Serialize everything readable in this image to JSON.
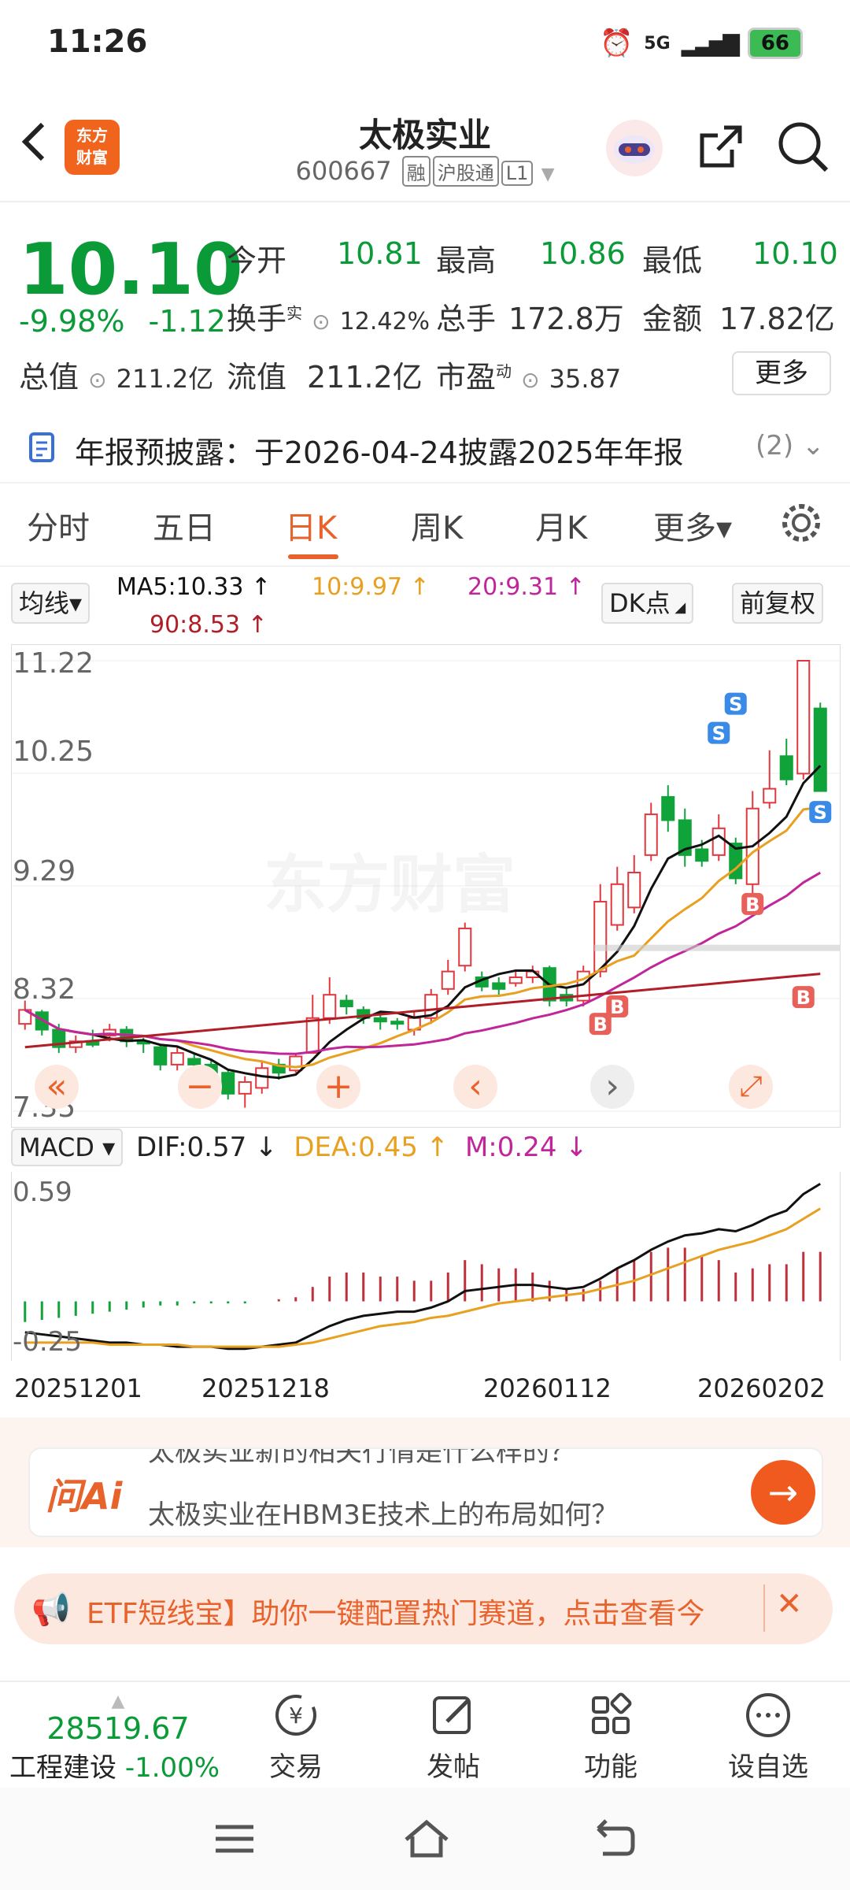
{
  "status_bar": {
    "time": "11:26",
    "network": "5G",
    "battery": "66"
  },
  "header": {
    "back_icon": "chevron-left-icon",
    "app_logo_line1": "东方",
    "app_logo_line2": "财富",
    "stock_name": "太极实业",
    "stock_code": "600667",
    "tags": [
      "融",
      "沪股通",
      "L1"
    ],
    "share_icon": "share-icon",
    "search_icon": "search-icon"
  },
  "quote": {
    "price": "10.10",
    "change_pct": "-9.98%",
    "change": "-1.12",
    "open_label": "今开",
    "open": "10.81",
    "high_label": "最高",
    "high": "10.86",
    "low_label": "最低",
    "low": "10.10",
    "turnover_label": "换手",
    "turnover_sup": "实",
    "turnover": "12.42%",
    "volume_label": "总手",
    "volume": "172.8万",
    "amount_label": "金额",
    "amount": "17.82亿",
    "mktcap_label": "总值",
    "mktcap": "211.2亿",
    "float_label": "流值",
    "float": "211.2亿",
    "pe_label": "市盈",
    "pe_sup": "动",
    "pe": "35.87",
    "more_label": "更多"
  },
  "notice": {
    "text": "年报预披露：于2026-04-24披露2025年年报",
    "count": "(2)"
  },
  "tabs": [
    "分时",
    "五日",
    "日K",
    "周K",
    "月K",
    "更多▾"
  ],
  "active_tab": "日K",
  "ma": {
    "selector": "均线▾",
    "ma5": "MA5:10.33 ↑",
    "ma10": "10:9.97 ↑",
    "ma20": "20:9.31 ↑",
    "ma90": "90:8.53 ↑",
    "dk_label": "DK点",
    "adjust_label": "前复权"
  },
  "kline": {
    "y_ticks": [
      "11.22",
      "10.25",
      "9.29",
      "8.32",
      "7.35"
    ],
    "watermark": "东方财富",
    "colors": {
      "up": "#e0383e",
      "down": "#10a33a",
      "ma5": "#111111",
      "ma10": "#e8a020",
      "ma20": "#c0259a",
      "ma90": "#b01e28"
    }
  },
  "chart_data": {
    "type": "candlestick",
    "ylim": [
      7.35,
      11.22
    ],
    "candles": [
      {
        "o": 8.1,
        "c": 8.22,
        "h": 8.3,
        "l": 8.05
      },
      {
        "o": 8.2,
        "c": 8.05,
        "h": 8.22,
        "l": 8.0
      },
      {
        "o": 8.05,
        "c": 7.9,
        "h": 8.1,
        "l": 7.85
      },
      {
        "o": 7.9,
        "c": 7.95,
        "h": 8.0,
        "l": 7.85
      },
      {
        "o": 7.95,
        "c": 7.92,
        "h": 8.05,
        "l": 7.9
      },
      {
        "o": 8.0,
        "c": 8.05,
        "h": 8.1,
        "l": 7.95
      },
      {
        "o": 8.05,
        "c": 7.95,
        "h": 8.08,
        "l": 7.9
      },
      {
        "o": 7.95,
        "c": 7.93,
        "h": 7.98,
        "l": 7.85
      },
      {
        "o": 7.9,
        "c": 7.75,
        "h": 7.92,
        "l": 7.7
      },
      {
        "o": 7.75,
        "c": 7.85,
        "h": 7.9,
        "l": 7.7
      },
      {
        "o": 7.8,
        "c": 7.75,
        "h": 7.85,
        "l": 7.65
      },
      {
        "o": 7.75,
        "c": 7.68,
        "h": 7.8,
        "l": 7.6
      },
      {
        "o": 7.68,
        "c": 7.5,
        "h": 7.7,
        "l": 7.45
      },
      {
        "o": 7.5,
        "c": 7.6,
        "h": 7.65,
        "l": 7.38
      },
      {
        "o": 7.55,
        "c": 7.72,
        "h": 7.78,
        "l": 7.5
      },
      {
        "o": 7.75,
        "c": 7.68,
        "h": 7.8,
        "l": 7.62
      },
      {
        "o": 7.7,
        "c": 7.82,
        "h": 7.85,
        "l": 7.68
      },
      {
        "o": 7.85,
        "c": 8.15,
        "h": 8.35,
        "l": 7.85
      },
      {
        "o": 8.15,
        "c": 8.35,
        "h": 8.5,
        "l": 8.1
      },
      {
        "o": 8.3,
        "c": 8.25,
        "h": 8.35,
        "l": 8.18
      },
      {
        "o": 8.22,
        "c": 8.15,
        "h": 8.25,
        "l": 8.1
      },
      {
        "o": 8.15,
        "c": 8.12,
        "h": 8.2,
        "l": 8.05
      },
      {
        "o": 8.12,
        "c": 8.1,
        "h": 8.15,
        "l": 8.05
      },
      {
        "o": 8.05,
        "c": 8.15,
        "h": 8.2,
        "l": 8.0
      },
      {
        "o": 8.15,
        "c": 8.35,
        "h": 8.4,
        "l": 8.1
      },
      {
        "o": 8.4,
        "c": 8.55,
        "h": 8.65,
        "l": 8.35
      },
      {
        "o": 8.6,
        "c": 8.92,
        "h": 8.97,
        "l": 8.55
      },
      {
        "o": 8.5,
        "c": 8.42,
        "h": 8.55,
        "l": 8.38
      },
      {
        "o": 8.45,
        "c": 8.4,
        "h": 8.5,
        "l": 8.35
      },
      {
        "o": 8.45,
        "c": 8.5,
        "h": 8.55,
        "l": 8.42
      },
      {
        "o": 8.5,
        "c": 8.55,
        "h": 8.6,
        "l": 8.45
      },
      {
        "o": 8.58,
        "c": 8.3,
        "h": 8.6,
        "l": 8.25
      },
      {
        "o": 8.35,
        "c": 8.3,
        "h": 8.4,
        "l": 8.25
      },
      {
        "o": 8.3,
        "c": 8.55,
        "h": 8.6,
        "l": 8.25
      },
      {
        "o": 8.55,
        "c": 9.15,
        "h": 9.3,
        "l": 8.5
      },
      {
        "o": 8.95,
        "c": 9.3,
        "h": 9.45,
        "l": 8.9
      },
      {
        "o": 9.1,
        "c": 9.4,
        "h": 9.55,
        "l": 9.05
      },
      {
        "o": 9.55,
        "c": 9.9,
        "h": 10.0,
        "l": 9.5
      },
      {
        "o": 10.05,
        "c": 9.85,
        "h": 10.15,
        "l": 9.75
      },
      {
        "o": 9.85,
        "c": 9.55,
        "h": 9.95,
        "l": 9.45
      },
      {
        "o": 9.6,
        "c": 9.5,
        "h": 9.68,
        "l": 9.45
      },
      {
        "o": 9.55,
        "c": 9.78,
        "h": 9.9,
        "l": 9.5
      },
      {
        "o": 9.65,
        "c": 9.35,
        "h": 9.7,
        "l": 9.3
      },
      {
        "o": 9.3,
        "c": 9.95,
        "h": 10.1,
        "l": 9.2
      },
      {
        "o": 10.0,
        "c": 10.12,
        "h": 10.45,
        "l": 9.95
      },
      {
        "o": 10.4,
        "c": 10.2,
        "h": 10.55,
        "l": 10.15
      },
      {
        "o": 10.25,
        "c": 11.22,
        "h": 11.22,
        "l": 10.2
      },
      {
        "o": 10.81,
        "c": 10.1,
        "h": 10.86,
        "l": 10.1
      }
    ],
    "markers": [
      "S",
      "S",
      "S",
      "B",
      "B",
      "B",
      "B"
    ]
  },
  "macd": {
    "selector": "MACD ▾",
    "dif": "DIF:0.57 ↓",
    "dea": "DEA:0.45 ↑",
    "m": "M:0.24 ↓",
    "y_top": "0.59",
    "y_bottom": "-0.25"
  },
  "macd_data": {
    "dif": [
      -0.15,
      -0.16,
      -0.17,
      -0.18,
      -0.19,
      -0.2,
      -0.2,
      -0.21,
      -0.21,
      -0.22,
      -0.22,
      -0.22,
      -0.23,
      -0.23,
      -0.22,
      -0.21,
      -0.2,
      -0.16,
      -0.12,
      -0.09,
      -0.07,
      -0.06,
      -0.05,
      -0.05,
      -0.03,
      0.0,
      0.05,
      0.06,
      0.07,
      0.08,
      0.08,
      0.07,
      0.06,
      0.07,
      0.11,
      0.16,
      0.2,
      0.25,
      0.29,
      0.32,
      0.33,
      0.35,
      0.34,
      0.37,
      0.41,
      0.44,
      0.52,
      0.57
    ],
    "dea": [
      -0.2,
      -0.2,
      -0.2,
      -0.2,
      -0.2,
      -0.21,
      -0.21,
      -0.21,
      -0.21,
      -0.21,
      -0.22,
      -0.22,
      -0.22,
      -0.22,
      -0.22,
      -0.22,
      -0.21,
      -0.2,
      -0.18,
      -0.16,
      -0.14,
      -0.12,
      -0.11,
      -0.1,
      -0.08,
      -0.07,
      -0.05,
      -0.03,
      -0.01,
      0.0,
      0.01,
      0.02,
      0.03,
      0.04,
      0.06,
      0.08,
      0.1,
      0.13,
      0.16,
      0.19,
      0.22,
      0.25,
      0.27,
      0.29,
      0.32,
      0.35,
      0.4,
      0.45
    ],
    "hist": [
      -0.1,
      -0.09,
      -0.08,
      -0.07,
      -0.06,
      -0.05,
      -0.04,
      -0.03,
      -0.02,
      -0.02,
      -0.01,
      -0.01,
      -0.01,
      -0.01,
      0.0,
      0.01,
      0.02,
      0.07,
      0.12,
      0.14,
      0.14,
      0.12,
      0.12,
      0.1,
      0.1,
      0.14,
      0.2,
      0.18,
      0.16,
      0.16,
      0.14,
      0.1,
      0.06,
      0.06,
      0.1,
      0.16,
      0.2,
      0.24,
      0.26,
      0.26,
      0.22,
      0.2,
      0.14,
      0.16,
      0.18,
      0.18,
      0.24,
      0.24
    ]
  },
  "dates": [
    "20251201",
    "20251218",
    "20260112",
    "20260202"
  ],
  "chart_controls": {
    "prev": "«",
    "zoom_out": "−",
    "zoom_in": "+",
    "left": "‹",
    "right": "›",
    "expand": "⤢"
  },
  "ai": {
    "logo": "问Ai",
    "line1": "太极实业新的相关行情是什么样的？",
    "line2": "太极实业在HBM3E技术上的布局如何？"
  },
  "promo": {
    "text": "ETF短线宝】助你一键配置热门赛道，点击查看今",
    "close": "✕"
  },
  "bottom_nav": {
    "index_value": "28519.67",
    "index_name": "工程建设",
    "index_change": "-1.00%",
    "items": [
      {
        "label": "交易",
        "icon": "yen-exchange-icon"
      },
      {
        "label": "发帖",
        "icon": "edit-icon"
      },
      {
        "label": "功能",
        "icon": "grid-icon"
      },
      {
        "label": "设自选",
        "icon": "more-circle-icon"
      }
    ]
  }
}
